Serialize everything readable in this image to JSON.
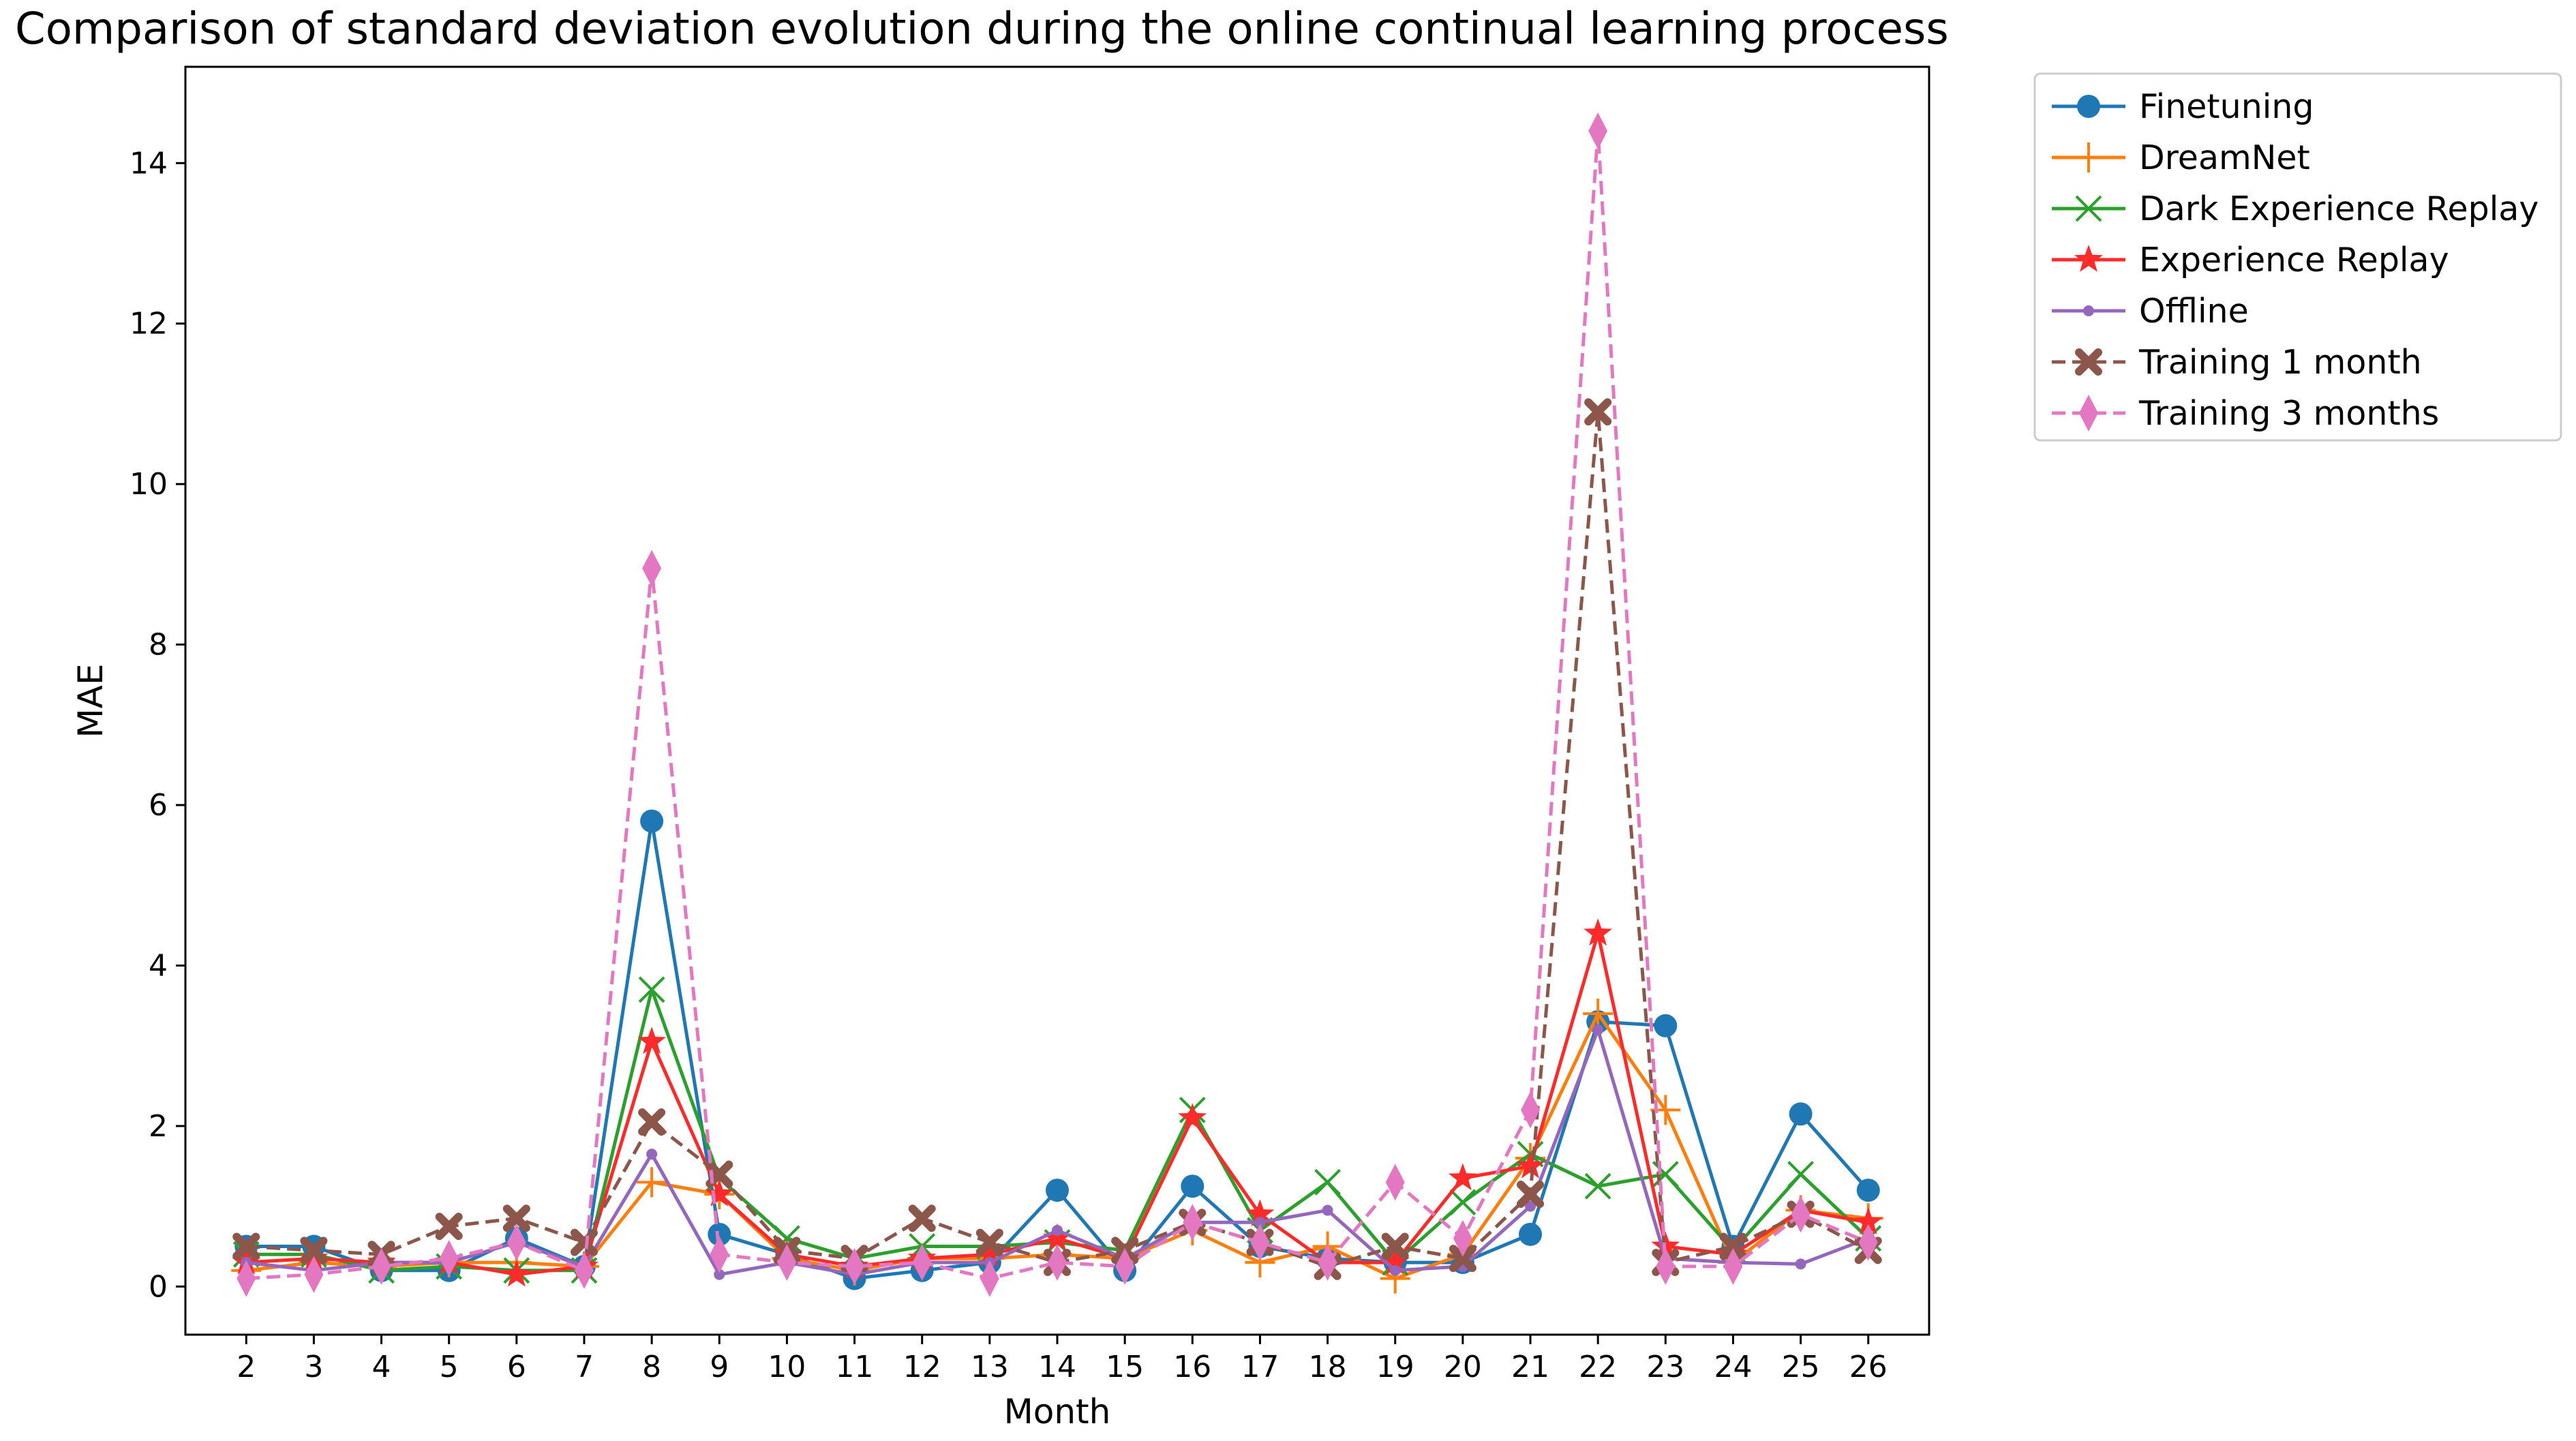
{
  "chart_data": {
    "type": "line",
    "title": "Comparison of standard deviation evolution during the online continual learning process",
    "xlabel": "Month",
    "ylabel": "MAE",
    "x": [
      2,
      3,
      4,
      5,
      6,
      7,
      8,
      9,
      10,
      11,
      12,
      13,
      14,
      15,
      16,
      17,
      18,
      19,
      20,
      21,
      22,
      23,
      24,
      25,
      26
    ],
    "xlim": [
      1.1,
      26.9
    ],
    "ylim": [
      -0.6,
      15.2
    ],
    "yticks": [
      0,
      2,
      4,
      6,
      8,
      10,
      12,
      14
    ],
    "grid": false,
    "legend_position": "outside-top-right",
    "series": [
      {
        "name": "Finetuning",
        "color": "#1f77b4",
        "marker": "circle",
        "linestyle": "solid",
        "values": [
          0.5,
          0.5,
          0.2,
          0.2,
          0.6,
          0.25,
          5.8,
          0.65,
          0.4,
          0.1,
          0.2,
          0.3,
          1.2,
          0.2,
          1.25,
          0.5,
          0.35,
          0.3,
          0.3,
          0.65,
          3.3,
          3.25,
          0.5,
          2.15,
          1.2
        ]
      },
      {
        "name": "DreamNet",
        "color": "#ff7f0e",
        "marker": "plus",
        "linestyle": "solid",
        "values": [
          0.2,
          0.3,
          0.25,
          0.3,
          0.3,
          0.25,
          1.3,
          1.15,
          0.35,
          0.2,
          0.35,
          0.35,
          0.4,
          0.35,
          0.7,
          0.3,
          0.5,
          0.1,
          0.4,
          1.6,
          3.4,
          2.2,
          0.3,
          0.95,
          0.85
        ]
      },
      {
        "name": "Dark Experience Replay",
        "color": "#2ca02c",
        "marker": "x",
        "linestyle": "solid",
        "values": [
          0.4,
          0.4,
          0.2,
          0.25,
          0.2,
          0.2,
          3.7,
          1.35,
          0.6,
          0.35,
          0.5,
          0.5,
          0.55,
          0.45,
          2.2,
          0.7,
          1.3,
          0.3,
          1.05,
          1.65,
          1.25,
          1.4,
          0.45,
          1.4,
          0.6
        ]
      },
      {
        "name": "Experience Replay",
        "color": "#ff2b2b",
        "marker": "star",
        "linestyle": "solid",
        "values": [
          0.3,
          0.35,
          0.3,
          0.3,
          0.15,
          0.25,
          3.05,
          1.15,
          0.4,
          0.25,
          0.35,
          0.4,
          0.6,
          0.35,
          2.1,
          0.9,
          0.3,
          0.3,
          1.35,
          1.5,
          4.4,
          0.5,
          0.4,
          0.95,
          0.8
        ]
      },
      {
        "name": "Offline",
        "color": "#9467bd",
        "marker": "dot",
        "linestyle": "solid",
        "values": [
          0.3,
          0.2,
          0.3,
          0.3,
          0.55,
          0.25,
          1.65,
          0.15,
          0.3,
          0.15,
          0.3,
          0.3,
          0.7,
          0.35,
          0.8,
          0.8,
          0.95,
          0.2,
          0.25,
          1.0,
          3.2,
          0.35,
          0.3,
          0.28,
          0.6
        ]
      },
      {
        "name": "Training 1 month",
        "color": "#8c564b",
        "marker": "xbold",
        "linestyle": "dashed",
        "values": [
          0.5,
          0.45,
          0.4,
          0.75,
          0.85,
          0.55,
          2.05,
          1.4,
          0.45,
          0.35,
          0.85,
          0.55,
          0.3,
          0.45,
          0.8,
          0.55,
          0.25,
          0.5,
          0.35,
          1.15,
          10.9,
          0.3,
          0.5,
          0.9,
          0.45
        ]
      },
      {
        "name": "Training 3 months",
        "color": "#e377c2",
        "marker": "diamond",
        "linestyle": "dashed",
        "values": [
          0.1,
          0.15,
          0.25,
          0.35,
          0.55,
          0.2,
          8.95,
          0.4,
          0.3,
          0.25,
          0.3,
          0.1,
          0.3,
          0.25,
          0.8,
          0.55,
          0.3,
          1.3,
          0.6,
          2.2,
          14.4,
          0.25,
          0.25,
          0.9,
          0.55
        ]
      }
    ]
  }
}
